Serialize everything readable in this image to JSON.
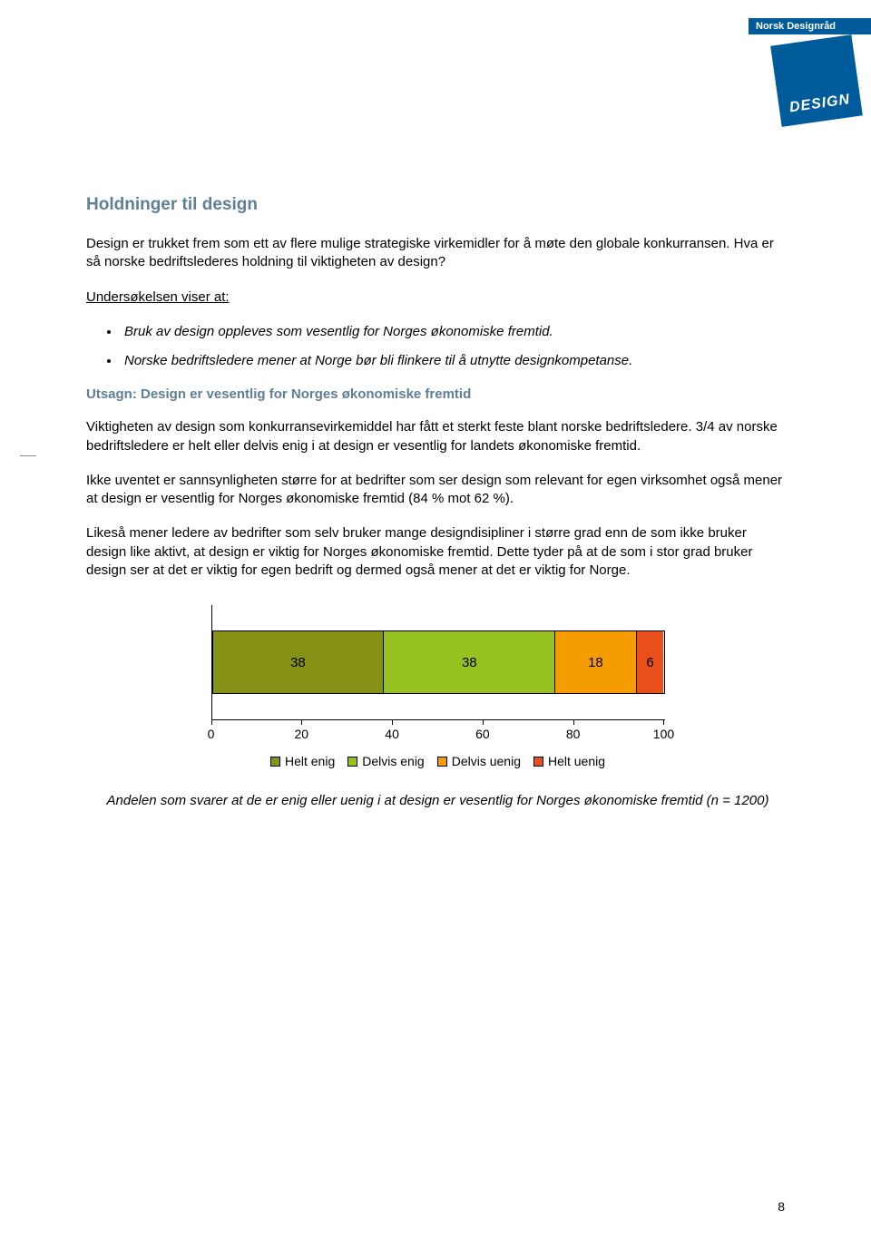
{
  "logo": {
    "bar_text": "Norsk Designråd",
    "box_text": "DESIGN"
  },
  "heading": "Holdninger til design",
  "intro": "Design er trukket frem som ett av flere mulige strategiske virkemidler for å møte den globale konkurransen. Hva er så norske bedriftslederes holdning til viktigheten av design?",
  "survey_label": "Undersøkelsen viser at:",
  "bullets": [
    "Bruk av design oppleves som vesentlig for Norges økonomiske fremtid.",
    "Norske bedriftsledere mener at Norge bør bli flinkere til å utnytte designkompetanse."
  ],
  "subheading": "Utsagn: Design er vesentlig for Norges økonomiske fremtid",
  "p1": "Viktigheten av design som konkurransevirkemiddel har fått et sterkt feste blant norske bedriftsledere. 3/4 av norske bedriftsledere er helt eller delvis enig i at design er vesentlig for landets økonomiske fremtid.",
  "p2": "Ikke uventet er sannsynligheten større for at bedrifter som ser design som relevant for egen virksomhet også mener at design er vesentlig for Norges økonomiske fremtid (84 % mot 62 %).",
  "p3": "Likeså mener ledere av bedrifter som selv bruker mange designdisipliner i større grad enn de som ikke bruker design like aktivt, at design er viktig for Norges økonomiske fremtid. Dette tyder på at de som i stor grad bruker design ser at det er viktig for egen bedrift og dermed også mener at det er viktig for Norge.",
  "chart": {
    "segments": [
      {
        "label": "38",
        "value": 38,
        "color": "#869215"
      },
      {
        "label": "38",
        "value": 38,
        "color": "#96c11f"
      },
      {
        "label": "18",
        "value": 18,
        "color": "#f59c00"
      },
      {
        "label": "6",
        "value": 6,
        "color": "#e94e1b"
      }
    ],
    "xticks": [
      "0",
      "20",
      "40",
      "60",
      "80",
      "100"
    ],
    "legend": [
      {
        "label": "Helt enig",
        "color": "#869215"
      },
      {
        "label": "Delvis enig",
        "color": "#96c11f"
      },
      {
        "label": "Delvis uenig",
        "color": "#f59c00"
      },
      {
        "label": "Helt uenig",
        "color": "#e94e1b"
      }
    ]
  },
  "caption": "Andelen som svarer at de er enig eller uenig i at design er vesentlig for Norges økonomiske fremtid (n = 1200)",
  "page_number": "8"
}
